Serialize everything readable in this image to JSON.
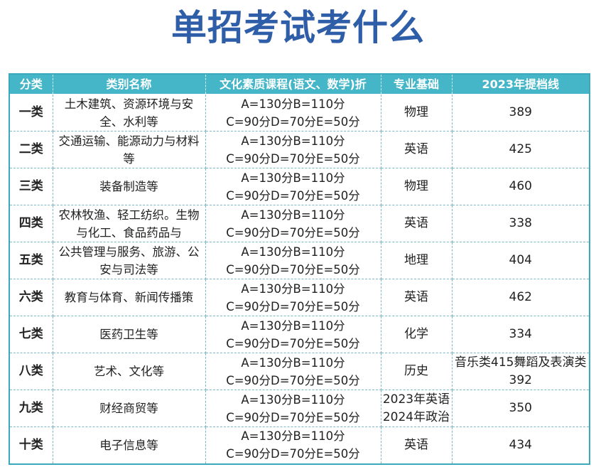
{
  "title": "单招考试考什么",
  "table": {
    "headers": [
      "分类",
      "类别名称",
      "文化素质课程(语文、数学)折",
      "专业基础",
      "2023年提档线"
    ],
    "rows": [
      {
        "cat": "一类",
        "name": "土木建筑、资源环境与安全、水利等",
        "score_line1": "A=130分B=110分",
        "score_line2": "C=90分D=70分E=50分",
        "subject": "物理",
        "cutoff": "389"
      },
      {
        "cat": "二类",
        "name": "交通运输、能源动力与材料等",
        "score_line1": "A=130分B=110分",
        "score_line2": "C=90分D=70分E=50分",
        "subject": "英语",
        "cutoff": "425"
      },
      {
        "cat": "三类",
        "name": "装备制造等",
        "score_line1": "A=130分B=110分",
        "score_line2": "C=90分D=70分E=50分",
        "subject": "物理",
        "cutoff": "460"
      },
      {
        "cat": "四类",
        "name": "农林牧渔、轻工纺织。生物与化工、食品药品与",
        "score_line1": "A=130分B=110分",
        "score_line2": "C=90分D=70分E=50分",
        "subject": "英语",
        "cutoff": "338"
      },
      {
        "cat": "五类",
        "name": "公共管理与服务、旅游、公安与司法等",
        "score_line1": "A=130分B=110分",
        "score_line2": "C=90分D=70分E=50分",
        "subject": "地理",
        "cutoff": "404"
      },
      {
        "cat": "六类",
        "name": "教育与体育、新闻传播策",
        "score_line1": "A=130分B=110分",
        "score_line2": "C=90分D=70分E=50分",
        "subject": "英语",
        "cutoff": "462"
      },
      {
        "cat": "七类",
        "name": "医药卫生等",
        "score_line1": "A=130分B=110分",
        "score_line2": "C=90分D=70分E=50分",
        "subject": "化学",
        "cutoff": "334"
      },
      {
        "cat": "八类",
        "name": "艺术、文化等",
        "score_line1": "A=130分B=110分",
        "score_line2": "C=90分D=70分E=50分",
        "subject": "历史",
        "cutoff": "音乐类415舞蹈及表演类392"
      },
      {
        "cat": "九类",
        "name": "财经商贸等",
        "score_line1": "A=130分B=110分",
        "score_line2": "C=90分D=70分E=50分",
        "subject": "2023年英语2024年政治",
        "cutoff": "350"
      },
      {
        "cat": "十类",
        "name": "电子信息等",
        "score_line1": "A=130分B=110分",
        "score_line2": "C=90分D=70分E=50分",
        "subject": "英语",
        "cutoff": "434"
      }
    ]
  }
}
